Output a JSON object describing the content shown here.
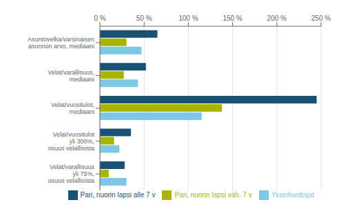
{
  "chart_data": {
    "type": "bar",
    "orientation": "horizontal",
    "categories": [
      "Asuntovelka/varsinaisen\nasunnon arvo, mediaani",
      "Velat/varallisuus,\nmediaani",
      "Velat/vuositulot,\nmediaani",
      "Velat/vuositulot\nyli 300%,\nosuus velallisista",
      "Velat/varallisuus\nyli 75%,\nosuus velallisista"
    ],
    "series": [
      {
        "name": "Pari, nuorin lapsi alle 7 v",
        "color": "#1a5276",
        "values": [
          65,
          52,
          245,
          35,
          28
        ]
      },
      {
        "name": "Pari, nuorin lapsi väh. 7 v",
        "color": "#a8b400",
        "values": [
          30,
          27,
          138,
          16,
          10
        ]
      },
      {
        "name": "Yksinhuoltajat",
        "color": "#7ec8e3",
        "values": [
          47,
          43,
          115,
          22,
          30
        ]
      }
    ],
    "xlim": [
      0,
      250
    ],
    "xticks": [
      {
        "value": 0,
        "label": "0 %"
      },
      {
        "value": 50,
        "label": "50 %"
      },
      {
        "value": 100,
        "label": "100 %"
      },
      {
        "value": 150,
        "label": "150 %"
      },
      {
        "value": 200,
        "label": "200 %"
      },
      {
        "value": 250,
        "label": "250 %"
      }
    ],
    "grid": true,
    "legend": "lower right"
  }
}
